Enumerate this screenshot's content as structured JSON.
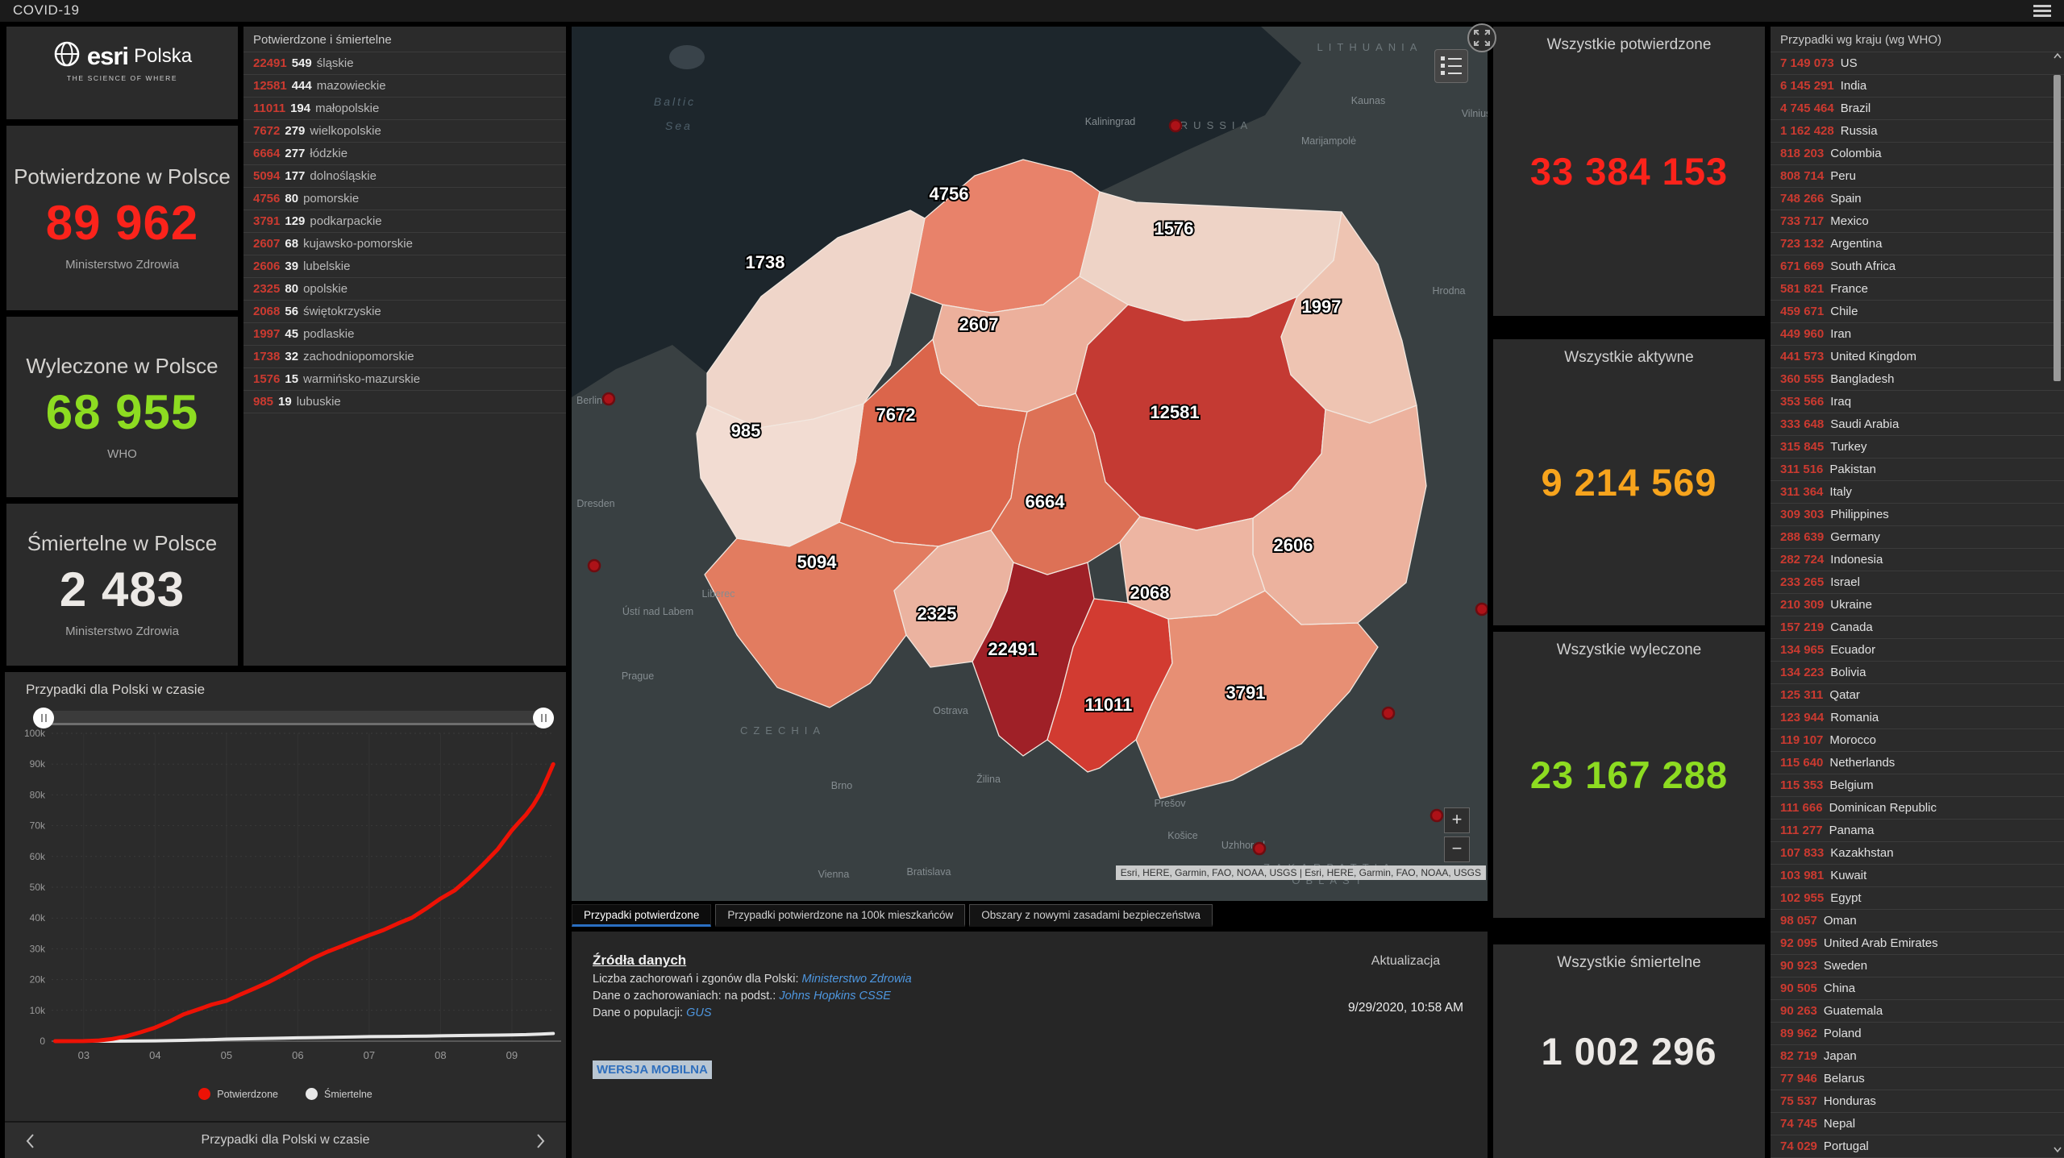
{
  "theme": {
    "accent_blue": "#2a6fc2",
    "link_blue": "#4e97e0",
    "red": "#fb231b",
    "orange": "#f7a41d",
    "green": "#8ddc21",
    "value_white": "#ece9e6"
  },
  "header": {
    "title": "COVID-19"
  },
  "branding": {
    "esri": "esri",
    "region": "Polska",
    "tagline": "THE SCIENCE OF WHERE"
  },
  "stats_left": [
    {
      "title": "Potwierdzone w Polsce",
      "value": "89 962",
      "source": "Ministerstwo Zdrowia",
      "color": "#fb231b"
    },
    {
      "title": "Wyleczone w Polsce",
      "value": "68 955",
      "source": "WHO",
      "color": "#8ddc21"
    },
    {
      "title": "Śmiertelne w Polsce",
      "value": "2 483",
      "source": "Ministerstwo Zdrowia",
      "color": "#ece9e6"
    }
  ],
  "wojewodztwa": {
    "title": "Potwierdzone i śmiertelne",
    "rows": [
      {
        "confirmed": "22491",
        "deaths": "549",
        "name": "śląskie"
      },
      {
        "confirmed": "12581",
        "deaths": "444",
        "name": "mazowieckie"
      },
      {
        "confirmed": "11011",
        "deaths": "194",
        "name": "małopolskie"
      },
      {
        "confirmed": "7672",
        "deaths": "279",
        "name": "wielkopolskie"
      },
      {
        "confirmed": "6664",
        "deaths": "277",
        "name": "łódzkie"
      },
      {
        "confirmed": "5094",
        "deaths": "177",
        "name": "dolnośląskie"
      },
      {
        "confirmed": "4756",
        "deaths": "80",
        "name": "pomorskie"
      },
      {
        "confirmed": "3791",
        "deaths": "129",
        "name": "podkarpackie"
      },
      {
        "confirmed": "2607",
        "deaths": "68",
        "name": "kujawsko-pomorskie"
      },
      {
        "confirmed": "2606",
        "deaths": "39",
        "name": "lubelskie"
      },
      {
        "confirmed": "2325",
        "deaths": "80",
        "name": "opolskie"
      },
      {
        "confirmed": "2068",
        "deaths": "56",
        "name": "świętokrzyskie"
      },
      {
        "confirmed": "1997",
        "deaths": "45",
        "name": "podlaskie"
      },
      {
        "confirmed": "1738",
        "deaths": "32",
        "name": "zachodniopomorskie"
      },
      {
        "confirmed": "1576",
        "deaths": "15",
        "name": "warmińsko-mazurskie"
      },
      {
        "confirmed": "985",
        "deaths": "19",
        "name": "lubuskie"
      }
    ]
  },
  "global_stats": [
    {
      "title": "Wszystkie potwierdzone",
      "value": "33 384 153",
      "color": "#fb231b"
    },
    {
      "title": "Wszystkie aktywne",
      "value": "9 214 569",
      "color": "#f7a41d"
    },
    {
      "title": "Wszystkie wyleczone",
      "value": "23 167 288",
      "color": "#8ddc21"
    },
    {
      "title": "Wszystkie śmiertelne",
      "value": "1 002 296",
      "color": "#ece9e6"
    }
  ],
  "countries": {
    "title": "Przypadki wg kraju (wg WHO)",
    "rows": [
      {
        "value": "7 149 073",
        "name": "US"
      },
      {
        "value": "6 145 291",
        "name": "India"
      },
      {
        "value": "4 745 464",
        "name": "Brazil"
      },
      {
        "value": "1 162 428",
        "name": "Russia"
      },
      {
        "value": "818 203",
        "name": "Colombia"
      },
      {
        "value": "808 714",
        "name": "Peru"
      },
      {
        "value": "748 266",
        "name": "Spain"
      },
      {
        "value": "733 717",
        "name": "Mexico"
      },
      {
        "value": "723 132",
        "name": "Argentina"
      },
      {
        "value": "671 669",
        "name": "South Africa"
      },
      {
        "value": "581 821",
        "name": "France"
      },
      {
        "value": "459 671",
        "name": "Chile"
      },
      {
        "value": "449 960",
        "name": "Iran"
      },
      {
        "value": "441 573",
        "name": "United Kingdom"
      },
      {
        "value": "360 555",
        "name": "Bangladesh"
      },
      {
        "value": "353 566",
        "name": "Iraq"
      },
      {
        "value": "333 648",
        "name": "Saudi Arabia"
      },
      {
        "value": "315 845",
        "name": "Turkey"
      },
      {
        "value": "311 516",
        "name": "Pakistan"
      },
      {
        "value": "311 364",
        "name": "Italy"
      },
      {
        "value": "309 303",
        "name": "Philippines"
      },
      {
        "value": "288 639",
        "name": "Germany"
      },
      {
        "value": "282 724",
        "name": "Indonesia"
      },
      {
        "value": "233 265",
        "name": "Israel"
      },
      {
        "value": "210 309",
        "name": "Ukraine"
      },
      {
        "value": "157 219",
        "name": "Canada"
      },
      {
        "value": "134 965",
        "name": "Ecuador"
      },
      {
        "value": "134 223",
        "name": "Bolivia"
      },
      {
        "value": "125 311",
        "name": "Qatar"
      },
      {
        "value": "123 944",
        "name": "Romania"
      },
      {
        "value": "119 107",
        "name": "Morocco"
      },
      {
        "value": "115 640",
        "name": "Netherlands"
      },
      {
        "value": "115 353",
        "name": "Belgium"
      },
      {
        "value": "111 666",
        "name": "Dominican Republic"
      },
      {
        "value": "111 277",
        "name": "Panama"
      },
      {
        "value": "107 833",
        "name": "Kazakhstan"
      },
      {
        "value": "103 981",
        "name": "Kuwait"
      },
      {
        "value": "102 955",
        "name": "Egypt"
      },
      {
        "value": "98 057",
        "name": "Oman"
      },
      {
        "value": "92 095",
        "name": "United Arab Emirates"
      },
      {
        "value": "90 923",
        "name": "Sweden"
      },
      {
        "value": "90 505",
        "name": "China"
      },
      {
        "value": "90 263",
        "name": "Guatemala"
      },
      {
        "value": "89 962",
        "name": "Poland"
      },
      {
        "value": "82 719",
        "name": "Japan"
      },
      {
        "value": "77 946",
        "name": "Belarus"
      },
      {
        "value": "75 537",
        "name": "Honduras"
      },
      {
        "value": "74 745",
        "name": "Nepal"
      },
      {
        "value": "74 029",
        "name": "Portugal"
      }
    ]
  },
  "map": {
    "regions": [
      {
        "name": "śląskie",
        "value": "22491",
        "color": "#9f2027"
      },
      {
        "name": "mazowieckie",
        "value": "12581",
        "color": "#c43a33"
      },
      {
        "name": "małopolskie",
        "value": "11011",
        "color": "#d23b31"
      },
      {
        "name": "wielkopolskie",
        "value": "7672",
        "color": "#db654b"
      },
      {
        "name": "łódzkie",
        "value": "6664",
        "color": "#dd7156"
      },
      {
        "name": "dolnośląskie",
        "value": "5094",
        "color": "#e27c60"
      },
      {
        "name": "pomorskie",
        "value": "4756",
        "color": "#e8826a"
      },
      {
        "name": "podkarpackie",
        "value": "3791",
        "color": "#e78f74"
      },
      {
        "name": "kujawsko-pomorskie",
        "value": "2607",
        "color": "#ecb09c"
      },
      {
        "name": "lubelskie",
        "value": "2606",
        "color": "#ecb29e"
      },
      {
        "name": "opolskie",
        "value": "2325",
        "color": "#ebb3a0"
      },
      {
        "name": "świętokrzyskie",
        "value": "2068",
        "color": "#edb5a2"
      },
      {
        "name": "podlaskie",
        "value": "1997",
        "color": "#eec4b2"
      },
      {
        "name": "zachodniopomorskie",
        "value": "1738",
        "color": "#efd5c9"
      },
      {
        "name": "warmińsko-mazurskie",
        "value": "1576",
        "color": "#eed3c6"
      },
      {
        "name": "lubuskie",
        "value": "985",
        "color": "#f2dcd2"
      }
    ],
    "basemap_labels": [
      {
        "text": "Baltic",
        "kind": "sea"
      },
      {
        "text": "Sea",
        "kind": "sea"
      },
      {
        "text": "LITHUANIA",
        "kind": "country"
      },
      {
        "text": "RUSSIA",
        "kind": "country"
      },
      {
        "text": "CZECHIA",
        "kind": "country"
      },
      {
        "text": "ZAKARPATTIA",
        "kind": "country"
      },
      {
        "text": "OBLAST",
        "kind": "country"
      },
      {
        "text": "Kaunas",
        "kind": "city"
      },
      {
        "text": "Vilnius",
        "kind": "city"
      },
      {
        "text": "Marijampolė",
        "kind": "city"
      },
      {
        "text": "Kaliningrad",
        "kind": "city"
      },
      {
        "text": "Hrodna",
        "kind": "city"
      },
      {
        "text": "Berlin",
        "kind": "city"
      },
      {
        "text": "Dresden",
        "kind": "city"
      },
      {
        "text": "Liberec",
        "kind": "city"
      },
      {
        "text": "Ústí nad Labem",
        "kind": "city"
      },
      {
        "text": "Prague",
        "kind": "city"
      },
      {
        "text": "Brno",
        "kind": "city"
      },
      {
        "text": "Vienna",
        "kind": "city"
      },
      {
        "text": "Bratislava",
        "kind": "city"
      },
      {
        "text": "Ostrava",
        "kind": "city"
      },
      {
        "text": "Žilina",
        "kind": "city"
      },
      {
        "text": "Prešov",
        "kind": "city"
      },
      {
        "text": "Košice",
        "kind": "city"
      },
      {
        "text": "Uzhhorod",
        "kind": "city"
      }
    ],
    "attribution": "Esri, HERE, Garmin, FAO, NOAA, USGS | Esri, HERE, Garmin, FAO, NOAA, USGS",
    "zoom_in_label": "+",
    "zoom_out_label": "−"
  },
  "tabs": [
    {
      "label": "Przypadki potwierdzone",
      "active": true
    },
    {
      "label": "Przypadki potwierdzone na 100k mieszkańców",
      "active": false
    },
    {
      "label": "Obszary z nowymi zasadami bezpieczeństwa",
      "active": false
    }
  ],
  "sources": {
    "heading": "Źródła danych",
    "lines": [
      {
        "prefix": "Liczba zachorowań i zgonów dla Polski: ",
        "link": "Ministerstwo Zdrowia"
      },
      {
        "prefix": "Dane o zachorowaniach: na podst.: ",
        "link": "Johns Hopkins CSSE"
      },
      {
        "prefix": "Dane o populacji: ",
        "link": "GUS"
      }
    ],
    "mobile_link": "WERSJA MOBILNA",
    "update_label": "Aktualizacja",
    "update_value": "9/29/2020, 10:58 AM"
  },
  "chart_data": {
    "type": "line",
    "title": "Przypadki dla Polski w czasie",
    "footer": "Przypadki dla Polski w czasie",
    "xlabel": "",
    "ylabel": "",
    "xlim": [
      2.55,
      9.6
    ],
    "ylim": [
      0,
      100000
    ],
    "grid": true,
    "legend_position": "bottom",
    "xticks": [
      {
        "v": 3,
        "label": "03"
      },
      {
        "v": 4,
        "label": "04"
      },
      {
        "v": 5,
        "label": "05"
      },
      {
        "v": 6,
        "label": "06"
      },
      {
        "v": 7,
        "label": "07"
      },
      {
        "v": 8,
        "label": "08"
      },
      {
        "v": 9,
        "label": "09"
      }
    ],
    "yticks": [
      {
        "v": 0,
        "label": "0"
      },
      {
        "v": 10000,
        "label": "10k"
      },
      {
        "v": 20000,
        "label": "20k"
      },
      {
        "v": 30000,
        "label": "30k"
      },
      {
        "v": 40000,
        "label": "40k"
      },
      {
        "v": 50000,
        "label": "50k"
      },
      {
        "v": 60000,
        "label": "60k"
      },
      {
        "v": 70000,
        "label": "70k"
      },
      {
        "v": 80000,
        "label": "80k"
      },
      {
        "v": 90000,
        "label": "90k"
      },
      {
        "v": 100000,
        "label": "100k"
      }
    ],
    "series": [
      {
        "name": "Śmiertelne",
        "color": "#e8e8e8",
        "width": 4,
        "points": [
          [
            2.6,
            0
          ],
          [
            3.0,
            0
          ],
          [
            3.4,
            10
          ],
          [
            3.8,
            50
          ],
          [
            4.0,
            94
          ],
          [
            4.4,
            250
          ],
          [
            4.8,
            500
          ],
          [
            5.0,
            651
          ],
          [
            5.4,
            800
          ],
          [
            5.8,
            1000
          ],
          [
            6.0,
            1074
          ],
          [
            6.4,
            1200
          ],
          [
            6.8,
            1350
          ],
          [
            7.0,
            1463
          ],
          [
            7.4,
            1550
          ],
          [
            7.8,
            1650
          ],
          [
            8.0,
            1716
          ],
          [
            8.4,
            1850
          ],
          [
            8.8,
            1970
          ],
          [
            9.0,
            2039
          ],
          [
            9.2,
            2120
          ],
          [
            9.4,
            2300
          ],
          [
            9.58,
            2483
          ]
        ]
      },
      {
        "name": "Potwierdzone",
        "color": "#ed1205",
        "width": 5,
        "points": [
          [
            2.6,
            0
          ],
          [
            3.0,
            22
          ],
          [
            3.2,
            180
          ],
          [
            3.4,
            700
          ],
          [
            3.6,
            1600
          ],
          [
            3.8,
            2900
          ],
          [
            4.0,
            4400
          ],
          [
            4.2,
            6400
          ],
          [
            4.4,
            8700
          ],
          [
            4.6,
            10300
          ],
          [
            4.8,
            11900
          ],
          [
            5.0,
            13100
          ],
          [
            5.2,
            15200
          ],
          [
            5.4,
            17200
          ],
          [
            5.6,
            19300
          ],
          [
            5.8,
            21700
          ],
          [
            6.0,
            24200
          ],
          [
            6.2,
            26800
          ],
          [
            6.4,
            28900
          ],
          [
            6.6,
            30700
          ],
          [
            6.8,
            32600
          ],
          [
            7.0,
            34400
          ],
          [
            7.2,
            36100
          ],
          [
            7.4,
            38200
          ],
          [
            7.6,
            40100
          ],
          [
            7.8,
            43100
          ],
          [
            8.0,
            46300
          ],
          [
            8.2,
            49000
          ],
          [
            8.4,
            53000
          ],
          [
            8.6,
            57500
          ],
          [
            8.8,
            62300
          ],
          [
            9.0,
            68500
          ],
          [
            9.1,
            71100
          ],
          [
            9.2,
            73600
          ],
          [
            9.3,
            76700
          ],
          [
            9.4,
            80600
          ],
          [
            9.5,
            85700
          ],
          [
            9.58,
            89962
          ]
        ]
      }
    ],
    "legend": [
      {
        "label": "Potwierdzone",
        "color": "#ed1205"
      },
      {
        "label": "Śmiertelne",
        "color": "#e8e8e8"
      }
    ]
  }
}
